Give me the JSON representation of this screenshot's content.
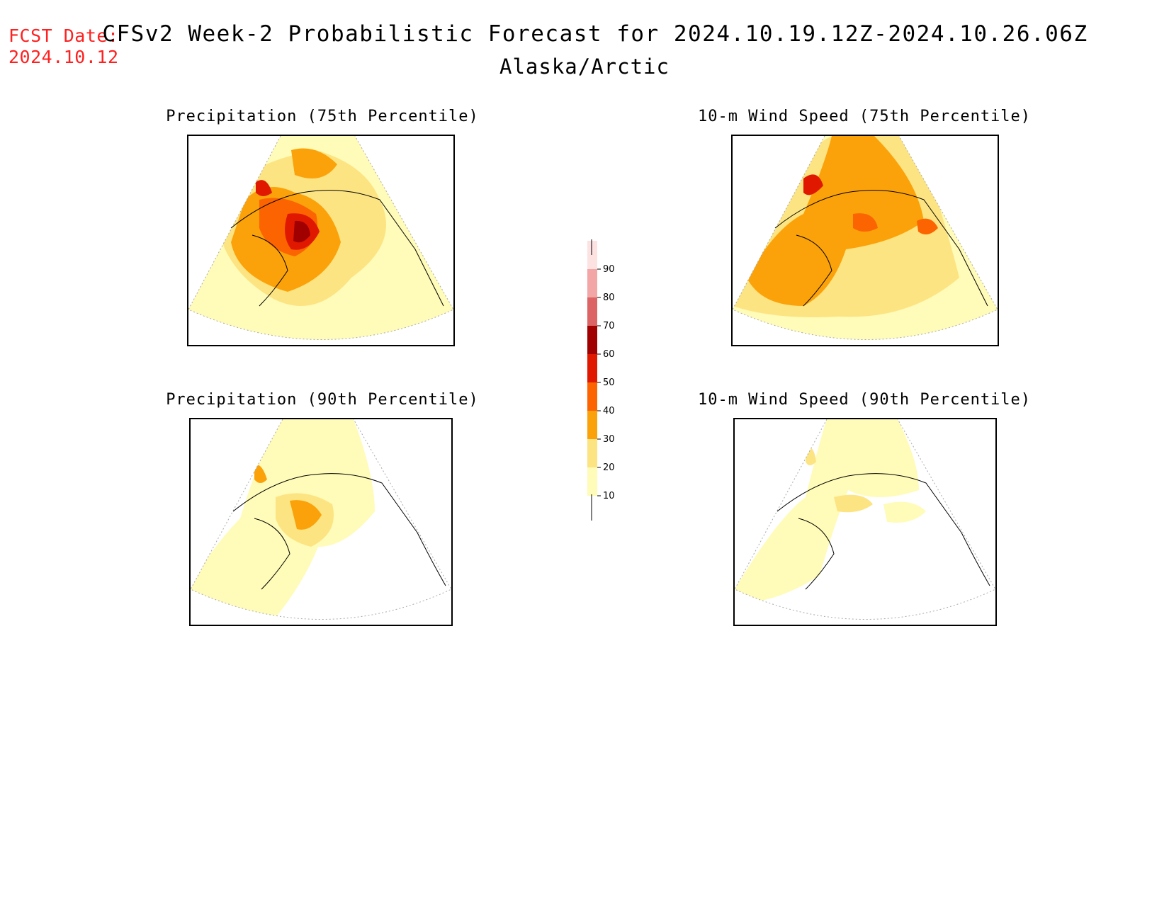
{
  "header": {
    "fcst_label": "FCST Date:",
    "fcst_date": "2024.10.12",
    "title": "CFSv2 Week-2 Probabilistic Forecast for 2024.10.19.12Z-2024.10.26.06Z",
    "subtitle": "Alaska/Arctic"
  },
  "panels": [
    {
      "id": "precip75",
      "title": "Precipitation (75th Percentile)"
    },
    {
      "id": "wind75",
      "title": "10-m Wind Speed (75th Percentile)"
    },
    {
      "id": "precip90",
      "title": "Precipitation (90th Percentile)"
    },
    {
      "id": "wind90",
      "title": "10-m Wind Speed (90th Percentile)"
    }
  ],
  "colorbar": {
    "levels": [
      "10",
      "20",
      "30",
      "40",
      "50",
      "60",
      "70",
      "80",
      "90"
    ],
    "colors": [
      "#fffbb8",
      "#fde482",
      "#fba20a",
      "#fb6400",
      "#e01800",
      "#a00000",
      "#dc6464",
      "#f2a6a6",
      "#fde2e2"
    ]
  }
}
